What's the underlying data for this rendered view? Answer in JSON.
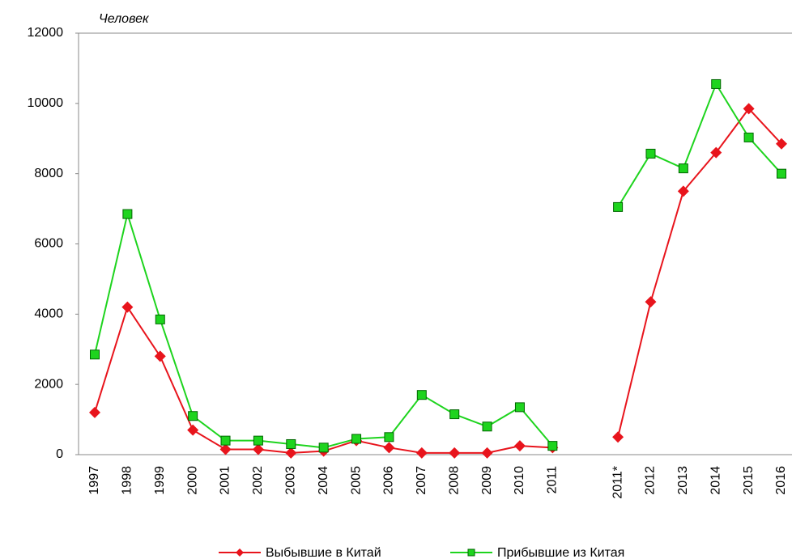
{
  "chart_data": {
    "type": "line",
    "y_axis_label": "Человек",
    "categories": [
      "1997",
      "1998",
      "1999",
      "2000",
      "2001",
      "2002",
      "2003",
      "2004",
      "2005",
      "2006",
      "2007",
      "2008",
      "2009",
      "2010",
      "2011",
      null,
      "2011*",
      "2012",
      "2013",
      "2014",
      "2015",
      "2016"
    ],
    "series": [
      {
        "name": "Выбывшие в Китай",
        "color": "#e8141c",
        "marker": "diamond",
        "values": [
          1200,
          4200,
          2800,
          700,
          150,
          150,
          50,
          100,
          400,
          200,
          50,
          50,
          50,
          250,
          200,
          null,
          500,
          4350,
          7500,
          8600,
          9850,
          8850
        ]
      },
      {
        "name": "Прибывшие из Китая",
        "color": "#1ed41e",
        "marker": "square",
        "values": [
          2850,
          6850,
          3850,
          1100,
          400,
          400,
          300,
          200,
          450,
          500,
          1700,
          1150,
          800,
          1350,
          250,
          null,
          7050,
          8570,
          8150,
          10550,
          9030,
          8000
        ]
      }
    ],
    "ylim": [
      0,
      12000
    ],
    "yticks": [
      0,
      2000,
      4000,
      6000,
      8000,
      10000,
      12000
    ],
    "grid": false,
    "legend": "bottom"
  }
}
